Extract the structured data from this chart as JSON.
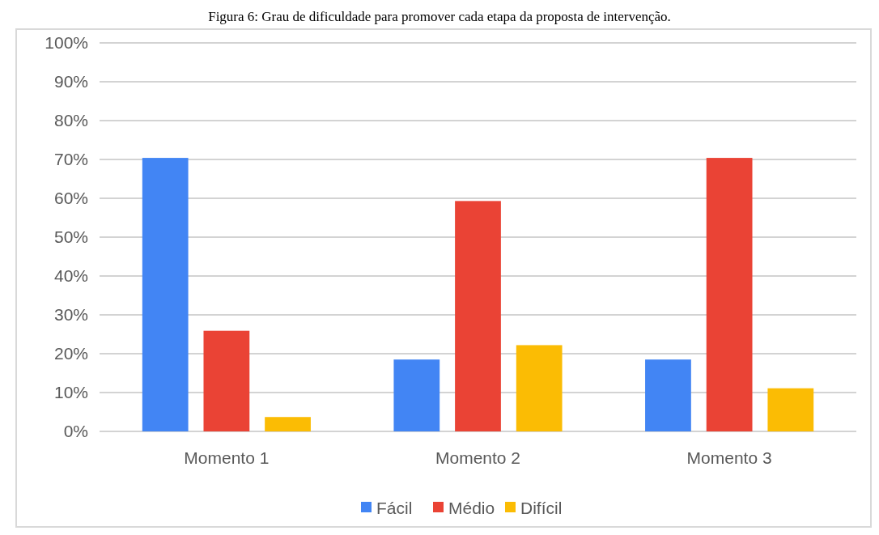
{
  "chart_data": {
    "type": "bar",
    "title": "Figura 6: Grau de dificuldade para promover cada etapa da proposta de intervenção.",
    "categories": [
      "Momento 1",
      "Momento 2",
      "Momento 3"
    ],
    "series": [
      {
        "name": "Fácil",
        "color": "#4285f4",
        "values": [
          70.4,
          18.5,
          18.5
        ]
      },
      {
        "name": "Médio",
        "color": "#ea4335",
        "values": [
          25.9,
          59.3,
          70.4
        ]
      },
      {
        "name": "Difícil",
        "color": "#fbbc04",
        "values": [
          3.7,
          22.2,
          11.1
        ]
      }
    ],
    "ylim": [
      0,
      100
    ],
    "yticks": [
      {
        "value": 0,
        "label": "0%"
      },
      {
        "value": 10,
        "label": "10%"
      },
      {
        "value": 20,
        "label": "20%"
      },
      {
        "value": 30,
        "label": "30%"
      },
      {
        "value": 40,
        "label": "40%"
      },
      {
        "value": 50,
        "label": "50%"
      },
      {
        "value": 60,
        "label": "60%"
      },
      {
        "value": 70,
        "label": "70%"
      },
      {
        "value": 80,
        "label": "80%"
      },
      {
        "value": 90,
        "label": "90%"
      },
      {
        "value": 100,
        "label": "100%"
      }
    ],
    "grid": "y",
    "legend": "bottom"
  }
}
